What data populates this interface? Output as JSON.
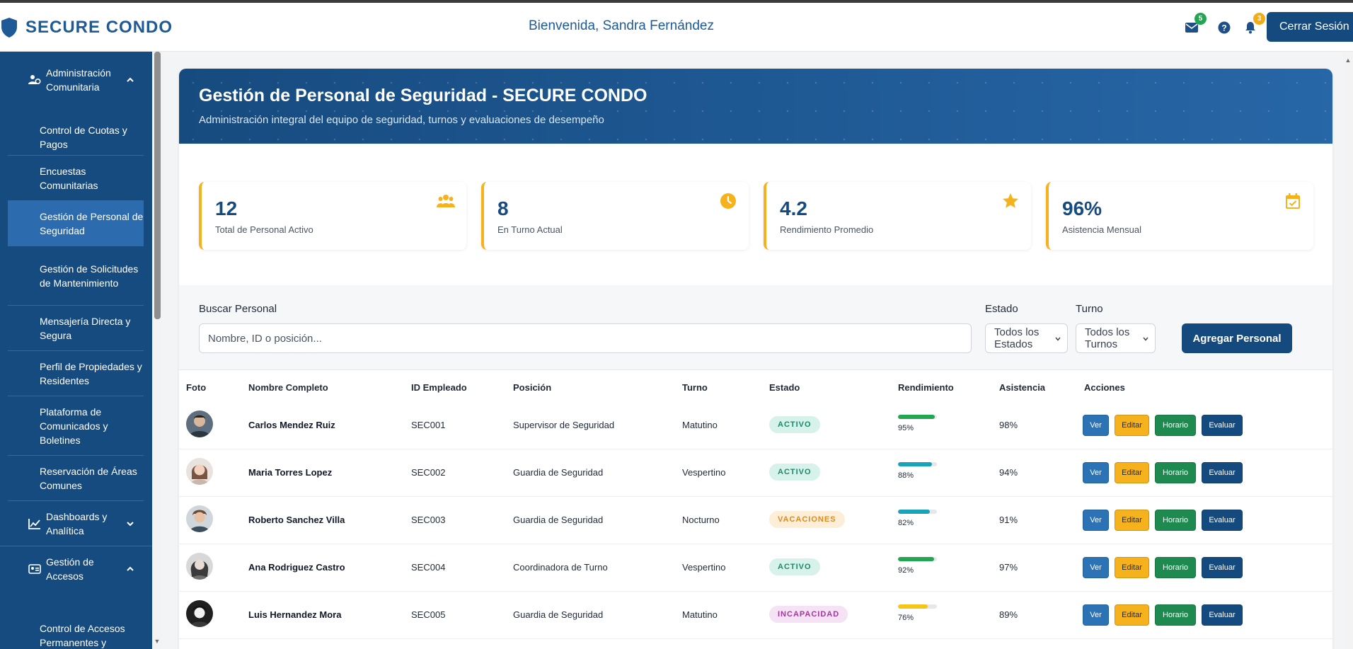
{
  "header": {
    "brand": "SECURE CONDO",
    "welcome": "Bienvenida, Sandra Fernández",
    "messages_badge": "5",
    "notifications_badge": "3",
    "logout_label": "Cerrar Sesión"
  },
  "sidebar": {
    "groups": [
      {
        "label": "Administración Comunitaria",
        "icon": "users-cog-icon",
        "expanded": true
      },
      {
        "label": "Dashboards y Analítica",
        "icon": "chart-line-icon",
        "expanded": false
      },
      {
        "label": "Gestión de Accesos",
        "icon": "id-card-icon",
        "expanded": true
      }
    ],
    "items": [
      {
        "label": "Control de Cuotas y Pagos"
      },
      {
        "label": "Encuestas Comunitarias"
      },
      {
        "label": "Gestión de Personal de Seguridad",
        "active": true
      },
      {
        "label": "Gestión de Solicitudes de Mantenimiento"
      },
      {
        "label": "Mensajería Directa y Segura"
      },
      {
        "label": "Perfil de Propiedades y Residentes"
      },
      {
        "label": "Plataforma de Comunicados y Boletines"
      },
      {
        "label": "Reservación de Áreas Comunes"
      },
      {
        "label": "Control de Accesos Permanentes y"
      }
    ]
  },
  "banner": {
    "title": "Gestión de Personal de Seguridad - SECURE CONDO",
    "subtitle": "Administración integral del equipo de seguridad, turnos y evaluaciones de desempeño"
  },
  "stats": [
    {
      "value": "12",
      "label": "Total de Personal Activo",
      "icon": "users-icon"
    },
    {
      "value": "8",
      "label": "En Turno Actual",
      "icon": "clock-icon"
    },
    {
      "value": "4.2",
      "label": "Rendimiento Promedio",
      "icon": "star-icon"
    },
    {
      "value": "96%",
      "label": "Asistencia Mensual",
      "icon": "calendar-check-icon"
    }
  ],
  "filters": {
    "search_label": "Buscar Personal",
    "search_placeholder": "Nombre, ID o posición...",
    "estado_label": "Estado",
    "estado_value": "Todos los Estados",
    "turno_label": "Turno",
    "turno_value": "Todos los Turnos",
    "add_label": "Agregar Personal"
  },
  "table": {
    "columns": [
      "Foto",
      "Nombre Completo",
      "ID Empleado",
      "Posición",
      "Turno",
      "Estado",
      "Rendimiento",
      "Asistencia",
      "Acciones"
    ],
    "actions": {
      "view": "Ver",
      "edit": "Editar",
      "schedule": "Horario",
      "evaluate": "Evaluar"
    },
    "rows": [
      {
        "name": "Carlos Mendez Ruiz",
        "id": "SEC001",
        "position": "Supervisor de Seguridad",
        "shift": "Matutino",
        "status": "ACTIVO",
        "performance": 95,
        "performance_label": "95%",
        "attendance": "98%"
      },
      {
        "name": "Maria Torres Lopez",
        "id": "SEC002",
        "position": "Guardia de Seguridad",
        "shift": "Vespertino",
        "status": "ACTIVO",
        "performance": 88,
        "performance_label": "88%",
        "attendance": "94%"
      },
      {
        "name": "Roberto Sanchez Villa",
        "id": "SEC003",
        "position": "Guardia de Seguridad",
        "shift": "Nocturno",
        "status": "VACACIONES",
        "performance": 82,
        "performance_label": "82%",
        "attendance": "91%"
      },
      {
        "name": "Ana Rodriguez Castro",
        "id": "SEC004",
        "position": "Coordinadora de Turno",
        "shift": "Vespertino",
        "status": "ACTIVO",
        "performance": 92,
        "performance_label": "92%",
        "attendance": "97%"
      },
      {
        "name": "Luis Hernandez Mora",
        "id": "SEC005",
        "position": "Guardia de Seguridad",
        "shift": "Matutino",
        "status": "INCAPACIDAD",
        "performance": 76,
        "performance_label": "76%",
        "attendance": "89%"
      }
    ]
  },
  "colors": {
    "primary": "#164b7f",
    "accent": "#f5b21c",
    "status_activo_bg": "#d7f2ea",
    "status_activo_fg": "#1a8a6a",
    "status_vacaciones_bg": "#fdeed8",
    "status_vacaciones_fg": "#e08a1e",
    "status_incapacidad_bg": "#f5e2f4",
    "status_incapacidad_fg": "#a1399b",
    "perf_high": "#22a652",
    "perf_mid": "#1aa2b8",
    "perf_low": "#f5c518"
  }
}
